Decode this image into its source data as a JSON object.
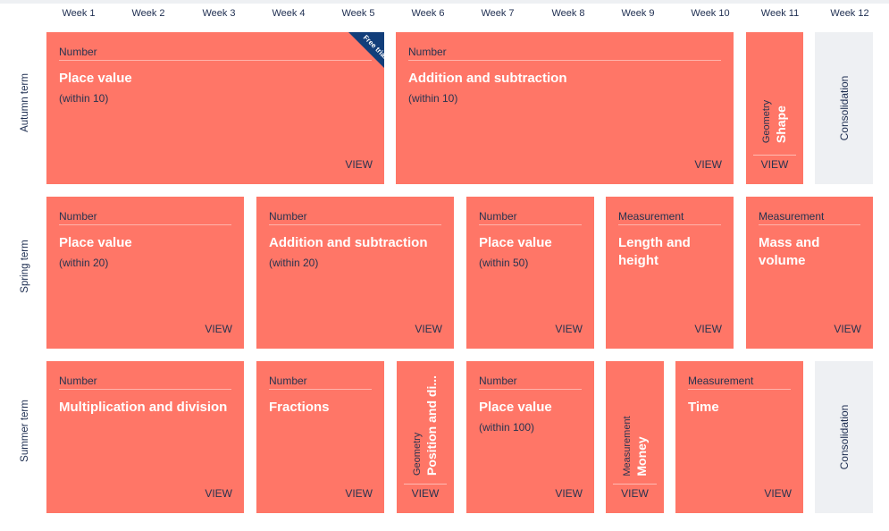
{
  "weeks": [
    "Week 1",
    "Week 2",
    "Week 3",
    "Week 4",
    "Week 5",
    "Week 6",
    "Week 7",
    "Week 8",
    "Week 9",
    "Week 10",
    "Week 11",
    "Week 12"
  ],
  "terms": {
    "autumn": "Autumn term",
    "spring": "Spring term",
    "summer": "Summer term"
  },
  "view_label": "VIEW",
  "badge": "Free trial",
  "colors": {
    "card": "#ff7667",
    "consolidation": "#eef0f3",
    "text_dark": "#1d2d50",
    "ribbon": "#123e7a"
  },
  "autumn": {
    "place_value": {
      "category": "Number",
      "title": "Place value",
      "subtitle": "(within 10)"
    },
    "add_sub": {
      "category": "Number",
      "title": "Addition and subtraction",
      "subtitle": "(within 10)"
    },
    "shape": {
      "category": "Geometry",
      "title": "Shape"
    },
    "consolidation": "Consolidation"
  },
  "spring": {
    "place_value_20": {
      "category": "Number",
      "title": "Place value",
      "subtitle": "(within 20)"
    },
    "add_sub_20": {
      "category": "Number",
      "title": "Addition and subtraction",
      "subtitle": "(within 20)"
    },
    "place_value_50": {
      "category": "Number",
      "title": "Place value",
      "subtitle": "(within 50)"
    },
    "length": {
      "category": "Measurement",
      "title": "Length and height"
    },
    "mass": {
      "category": "Measurement",
      "title": "Mass and volume"
    }
  },
  "summer": {
    "mult_div": {
      "category": "Number",
      "title": "Multiplication and division"
    },
    "fractions": {
      "category": "Number",
      "title": "Fractions"
    },
    "position": {
      "category": "Geometry",
      "title": "Position and di..."
    },
    "place_value_100": {
      "category": "Number",
      "title": "Place value",
      "subtitle": "(within 100)"
    },
    "money": {
      "category": "Measurement",
      "title": "Money"
    },
    "time": {
      "category": "Measurement",
      "title": "Time"
    },
    "consolidation": "Consolidation"
  }
}
